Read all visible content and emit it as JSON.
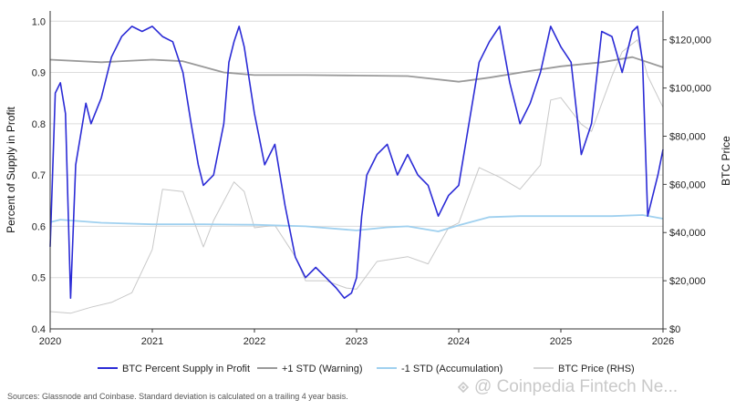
{
  "chart_data": {
    "type": "line",
    "ylabel_left": "Percent of Supply in Profit",
    "ylabel_right": "BTC Price",
    "ylim_left": [
      0.4,
      1.02
    ],
    "ylim_right": [
      0,
      132000
    ],
    "xlim": [
      2020.0,
      2026.0
    ],
    "x_ticks": [
      "2020",
      "2021",
      "2022",
      "2023",
      "2024",
      "2025",
      "2026"
    ],
    "y_ticks_left": [
      "0.4",
      "0.5",
      "0.6",
      "0.7",
      "0.8",
      "0.9",
      "1.0"
    ],
    "y_ticks_left_values": [
      0.4,
      0.5,
      0.6,
      0.7,
      0.8,
      0.9,
      1.0
    ],
    "y_ticks_right": [
      "$0",
      "$20,000",
      "$40,000",
      "$60,000",
      "$80,000",
      "$100,000",
      "$120,000"
    ],
    "y_ticks_right_values": [
      0,
      20000,
      40000,
      60000,
      80000,
      100000,
      120000
    ],
    "grid": "horizontal",
    "legend_position": "bottom",
    "series": [
      {
        "name": "BTC Percent Supply in Profit",
        "axis": "left",
        "color": "#2b2bd6",
        "x": [
          2020.0,
          2020.05,
          2020.1,
          2020.15,
          2020.2,
          2020.25,
          2020.3,
          2020.35,
          2020.4,
          2020.5,
          2020.6,
          2020.7,
          2020.8,
          2020.9,
          2021.0,
          2021.1,
          2021.2,
          2021.3,
          2021.38,
          2021.45,
          2021.5,
          2021.6,
          2021.7,
          2021.75,
          2021.8,
          2021.85,
          2021.9,
          2022.0,
          2022.1,
          2022.2,
          2022.3,
          2022.4,
          2022.5,
          2022.6,
          2022.7,
          2022.8,
          2022.88,
          2022.95,
          2023.0,
          2023.05,
          2023.1,
          2023.2,
          2023.3,
          2023.4,
          2023.5,
          2023.6,
          2023.7,
          2023.8,
          2023.9,
          2024.0,
          2024.1,
          2024.2,
          2024.3,
          2024.4,
          2024.5,
          2024.6,
          2024.7,
          2024.8,
          2024.9,
          2025.0,
          2025.1,
          2025.2,
          2025.3,
          2025.4,
          2025.5,
          2025.6,
          2025.7,
          2025.75,
          2025.8,
          2025.85,
          2025.9,
          2025.95,
          2026.0
        ],
        "values": [
          0.56,
          0.86,
          0.88,
          0.82,
          0.46,
          0.72,
          0.78,
          0.84,
          0.8,
          0.85,
          0.93,
          0.97,
          0.99,
          0.98,
          0.99,
          0.97,
          0.96,
          0.9,
          0.8,
          0.72,
          0.68,
          0.7,
          0.8,
          0.92,
          0.96,
          0.99,
          0.95,
          0.82,
          0.72,
          0.76,
          0.64,
          0.54,
          0.5,
          0.52,
          0.5,
          0.48,
          0.46,
          0.47,
          0.5,
          0.62,
          0.7,
          0.74,
          0.76,
          0.7,
          0.74,
          0.7,
          0.68,
          0.62,
          0.66,
          0.68,
          0.8,
          0.92,
          0.96,
          0.99,
          0.88,
          0.8,
          0.84,
          0.9,
          0.99,
          0.95,
          0.92,
          0.74,
          0.8,
          0.98,
          0.97,
          0.9,
          0.98,
          0.99,
          0.92,
          0.62,
          0.66,
          0.7,
          0.75
        ]
      },
      {
        "name": "+1 STD (Warning)",
        "axis": "left",
        "color": "#9a9a9a",
        "x": [
          2020.0,
          2020.5,
          2021.0,
          2021.3,
          2021.7,
          2022.0,
          2022.5,
          2023.0,
          2023.5,
          2024.0,
          2024.3,
          2024.7,
          2025.0,
          2025.4,
          2025.7,
          2026.0
        ],
        "values": [
          0.925,
          0.92,
          0.925,
          0.922,
          0.9,
          0.895,
          0.895,
          0.894,
          0.893,
          0.882,
          0.89,
          0.903,
          0.912,
          0.92,
          0.93,
          0.91
        ]
      },
      {
        "name": "-1 STD (Accumulation)",
        "axis": "left",
        "color": "#9fd0ef",
        "x": [
          2020.0,
          2020.1,
          2020.5,
          2021.0,
          2021.5,
          2022.0,
          2022.5,
          2023.0,
          2023.3,
          2023.5,
          2023.8,
          2024.0,
          2024.3,
          2024.6,
          2025.0,
          2025.5,
          2025.8,
          2026.0
        ],
        "values": [
          0.608,
          0.613,
          0.607,
          0.604,
          0.604,
          0.603,
          0.6,
          0.592,
          0.598,
          0.6,
          0.59,
          0.602,
          0.618,
          0.62,
          0.62,
          0.62,
          0.622,
          0.615
        ]
      },
      {
        "name": "BTC Price (RHS)",
        "axis": "right",
        "color": "#c8c8c8",
        "x": [
          2020.0,
          2020.2,
          2020.4,
          2020.6,
          2020.8,
          2021.0,
          2021.1,
          2021.3,
          2021.5,
          2021.6,
          2021.8,
          2021.9,
          2022.0,
          2022.2,
          2022.4,
          2022.5,
          2022.7,
          2022.9,
          2023.0,
          2023.2,
          2023.5,
          2023.7,
          2023.9,
          2024.0,
          2024.2,
          2024.4,
          2024.6,
          2024.8,
          2024.9,
          2025.0,
          2025.2,
          2025.3,
          2025.5,
          2025.6,
          2025.75,
          2025.85,
          2026.0
        ],
        "values": [
          7200,
          6500,
          9000,
          11000,
          15000,
          33000,
          58000,
          57000,
          34000,
          45000,
          61000,
          57000,
          42000,
          43000,
          30000,
          20000,
          20000,
          17000,
          16500,
          28000,
          30000,
          27000,
          42000,
          44000,
          67000,
          63000,
          58000,
          68000,
          95000,
          96000,
          85000,
          82000,
          105000,
          115000,
          120000,
          105000,
          92000
        ]
      }
    ]
  },
  "legend": [
    {
      "label": "BTC Percent Supply in Profit",
      "color": "#2b2bd6"
    },
    {
      "label": "+1 STD (Warning)",
      "color": "#9a9a9a"
    },
    {
      "label": "-1 STD (Accumulation)",
      "color": "#9fd0ef"
    },
    {
      "label": "BTC Price (RHS)",
      "color": "#d4d4d4"
    }
  ],
  "footer": {
    "source": "Sources: Glassnode and Coinbase. Standard deviation is calculated on a trailing 4 year basis.",
    "watermark": "@ Coinpedia Fintech Ne..."
  }
}
